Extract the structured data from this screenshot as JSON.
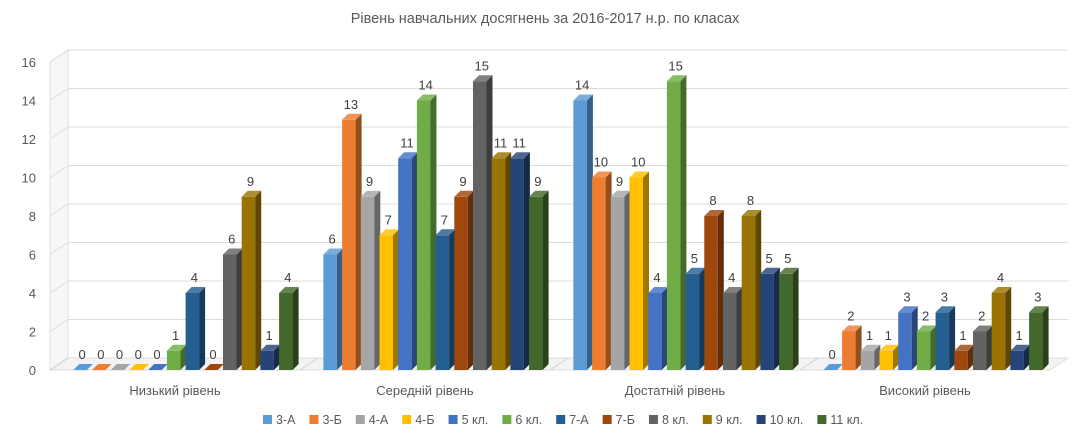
{
  "chart_data": {
    "type": "bar",
    "style": "3d-clustered-column",
    "title": "Рівень навчальних досягнень за 2016-2017 н.р. по класах",
    "xlabel": "",
    "ylabel": "",
    "ylim": [
      0,
      16
    ],
    "yticks": [
      "0",
      "2",
      "4",
      "6",
      "8",
      "10",
      "12",
      "14",
      "16"
    ],
    "grid": true,
    "legend_position": "bottom",
    "categories": [
      "Низький рівень",
      "Середній рівень",
      "Достатній рівень",
      "Високий рівень"
    ],
    "series": [
      {
        "name": "3-А",
        "color": "#5B9BD5",
        "values": [
          0,
          6,
          14,
          0
        ]
      },
      {
        "name": "3-Б",
        "color": "#ED7D31",
        "values": [
          0,
          13,
          10,
          2
        ]
      },
      {
        "name": "4-А",
        "color": "#A5A5A5",
        "values": [
          0,
          9,
          9,
          1
        ]
      },
      {
        "name": "4-Б",
        "color": "#FFC000",
        "values": [
          0,
          7,
          10,
          1
        ]
      },
      {
        "name": "5 кл.",
        "color": "#4472C4",
        "values": [
          0,
          11,
          4,
          3
        ]
      },
      {
        "name": "6 кл.",
        "color": "#70AD47",
        "values": [
          1,
          14,
          15,
          2
        ]
      },
      {
        "name": "7-А",
        "color": "#255E91",
        "values": [
          4,
          7,
          5,
          3
        ]
      },
      {
        "name": "7-Б",
        "color": "#9E480E",
        "values": [
          0,
          9,
          8,
          1
        ]
      },
      {
        "name": "8 кл.",
        "color": "#636363",
        "values": [
          6,
          15,
          4,
          2
        ]
      },
      {
        "name": "9 кл.",
        "color": "#997300",
        "values": [
          9,
          11,
          8,
          4
        ]
      },
      {
        "name": "10 кл.",
        "color": "#264478",
        "values": [
          1,
          11,
          5,
          1
        ]
      },
      {
        "name": "11 кл.",
        "color": "#43682B",
        "values": [
          4,
          9,
          5,
          3
        ]
      }
    ]
  }
}
